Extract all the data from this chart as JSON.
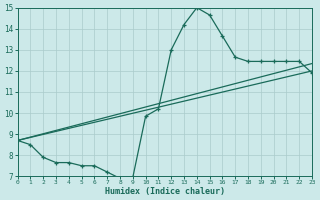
{
  "xlabel": "Humidex (Indice chaleur)",
  "xlim": [
    0,
    23
  ],
  "ylim": [
    7,
    15
  ],
  "xticks": [
    0,
    1,
    2,
    3,
    4,
    5,
    6,
    7,
    8,
    9,
    10,
    11,
    12,
    13,
    14,
    15,
    16,
    17,
    18,
    19,
    20,
    21,
    22,
    23
  ],
  "yticks": [
    7,
    8,
    9,
    10,
    11,
    12,
    13,
    14,
    15
  ],
  "bg_color": "#cce9e9",
  "line_color": "#1a6b5a",
  "grid_color": "#aacccc",
  "curve1_x": [
    0,
    1,
    2,
    3,
    4,
    5,
    6,
    7,
    8,
    9,
    10,
    11,
    12,
    13,
    14,
    15,
    16,
    17,
    18,
    19,
    20,
    21,
    22,
    23
  ],
  "curve1_y": [
    8.7,
    8.5,
    7.9,
    7.65,
    7.65,
    7.5,
    7.5,
    7.2,
    6.9,
    6.95,
    9.85,
    10.2,
    13.0,
    14.2,
    15.0,
    14.65,
    13.65,
    12.65,
    12.45,
    12.45,
    12.45,
    12.45,
    12.45,
    11.9
  ],
  "curve2_x": [
    0,
    23
  ],
  "curve2_y": [
    8.7,
    12.0
  ],
  "curve3_x": [
    0,
    23
  ],
  "curve3_y": [
    8.7,
    12.35
  ]
}
